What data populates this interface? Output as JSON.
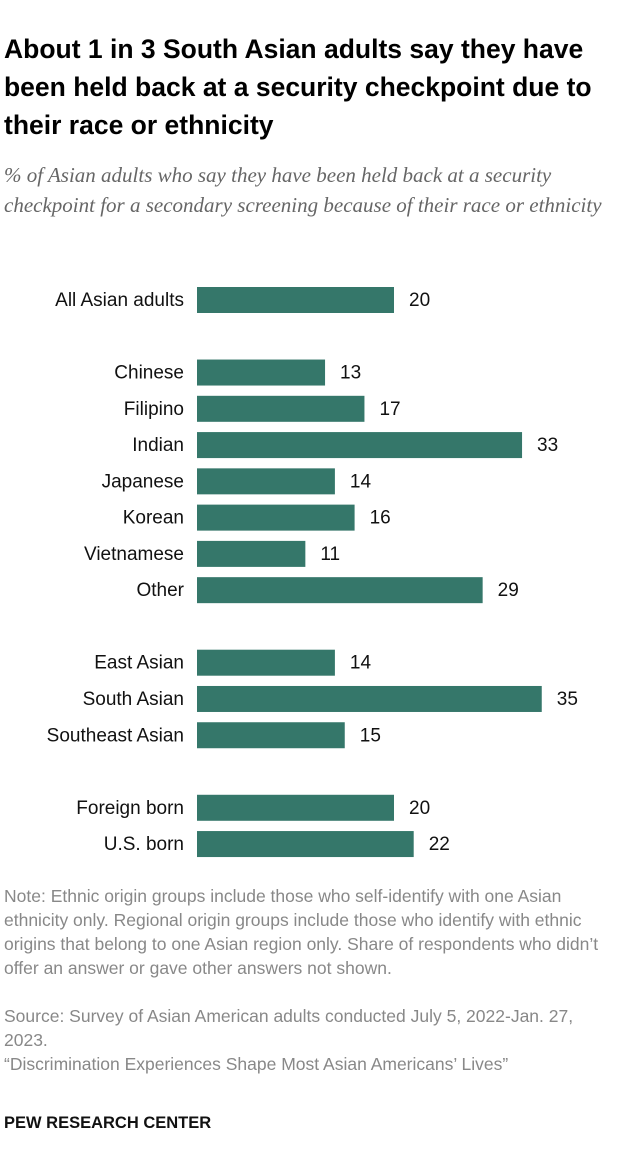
{
  "chart_data": {
    "type": "bar",
    "title": "About 1 in 3 South Asian adults say they have been held back at a security checkpoint due to their race or ethnicity",
    "subtitle": "% of Asian adults who say they have been held back at a security checkpoint for a secondary screening because of their race or ethnicity",
    "categories": [
      "All Asian adults",
      null,
      "Chinese",
      "Filipino",
      "Indian",
      "Japanese",
      "Korean",
      "Vietnamese",
      "Other",
      null,
      "East Asian",
      "South Asian",
      "Southeast Asian",
      null,
      "Foreign born",
      "U.S. born"
    ],
    "values": [
      20,
      null,
      13,
      17,
      33,
      14,
      16,
      11,
      29,
      null,
      14,
      35,
      15,
      null,
      20,
      22
    ],
    "color": "#35776a",
    "note": "Note: Ethnic origin groups include those who self-identify with one Asian ethnicity only. Regional origin groups include those who identify with ethnic origins that belong to one Asian region only. Share of respondents who didn’t offer an answer or gave other answers not shown.",
    "source": "Source: Survey of Asian American adults conducted July 5, 2022-Jan. 27, 2023.",
    "report": "“Discrimination Experiences Shape Most Asian Americans’ Lives”",
    "publisher": "PEW RESEARCH CENTER"
  }
}
